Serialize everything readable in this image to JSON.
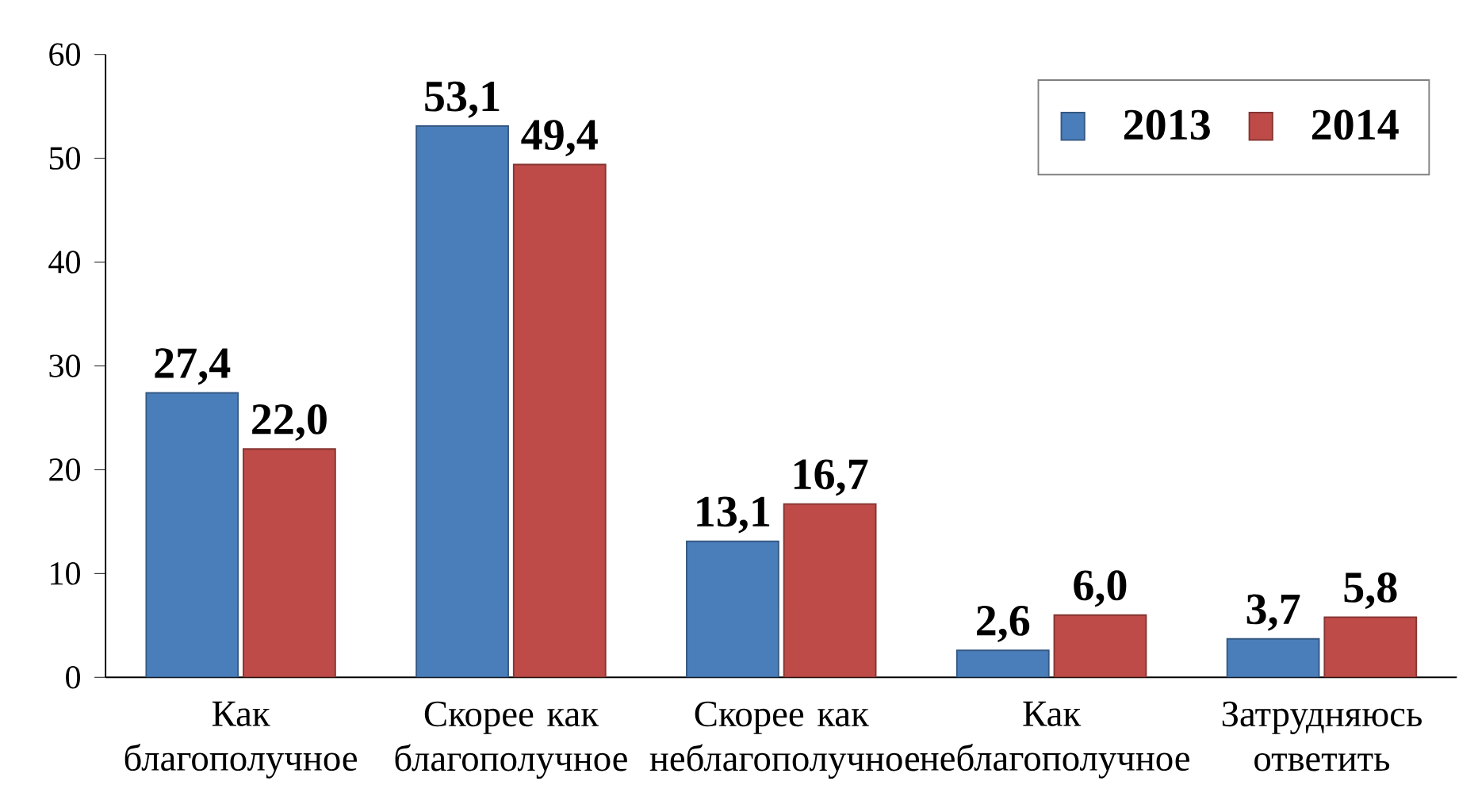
{
  "chart_data": {
    "type": "bar",
    "categories": [
      "Как благополучное",
      "Скорее как благополучное",
      "Скорее как неблагополучное",
      "Как неблагополучное",
      "Затрудняюсь ответить"
    ],
    "series": [
      {
        "name": "2013",
        "color": "#4a7ebb",
        "values": [
          27.4,
          53.1,
          13.1,
          2.6,
          3.7
        ],
        "value_labels": [
          "27,4",
          "53,1",
          "13,1",
          "2,6",
          "3,7"
        ]
      },
      {
        "name": "2014",
        "color": "#be4b48",
        "values": [
          22.0,
          49.4,
          16.7,
          6.0,
          5.8
        ],
        "value_labels": [
          "22,0",
          "49,4",
          "16,7",
          "6,0",
          "5,8"
        ]
      }
    ],
    "ylim": [
      0,
      60
    ],
    "yticks": [
      0,
      10,
      20,
      30,
      40,
      50,
      60
    ],
    "grid": false,
    "legend": "top right"
  }
}
